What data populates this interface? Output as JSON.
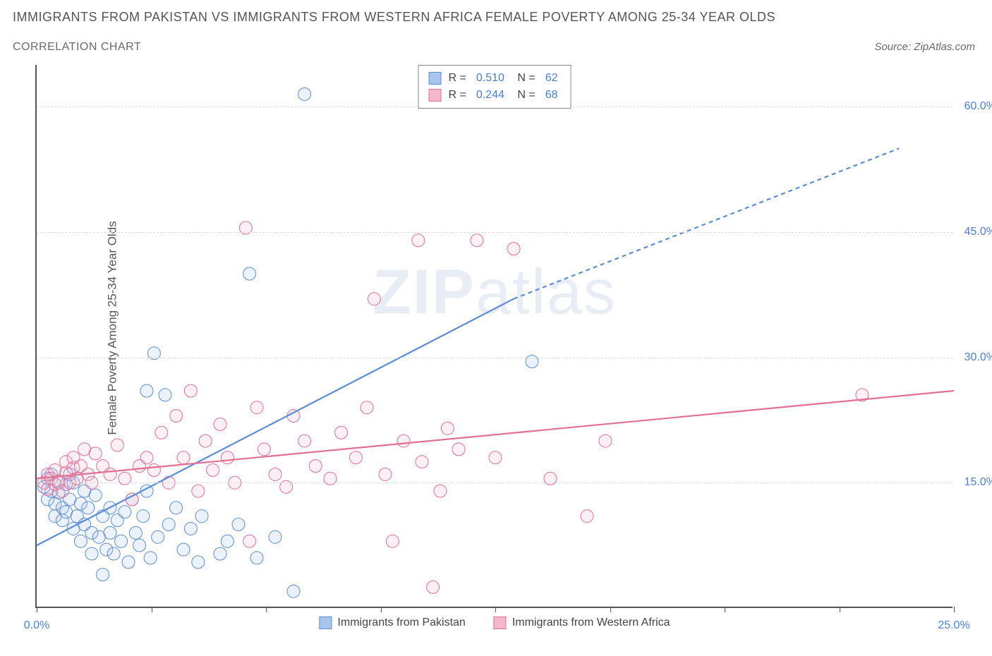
{
  "title": "IMMIGRANTS FROM PAKISTAN VS IMMIGRANTS FROM WESTERN AFRICA FEMALE POVERTY AMONG 25-34 YEAR OLDS",
  "subtitle": "CORRELATION CHART",
  "source": "Source: ZipAtlas.com",
  "ylabel": "Female Poverty Among 25-34 Year Olds",
  "watermark_bold": "ZIP",
  "watermark_rest": "atlas",
  "chart": {
    "type": "scatter",
    "xlim": [
      0,
      25
    ],
    "ylim": [
      0,
      65
    ],
    "xticks": [
      0,
      3.125,
      6.25,
      9.375,
      12.5,
      15.625,
      18.75,
      21.875,
      25
    ],
    "xtick_labels": {
      "0": "0.0%",
      "25": "25.0%"
    },
    "ygrids": [
      15,
      30,
      45,
      60
    ],
    "ytick_labels": {
      "15": "15.0%",
      "30": "30.0%",
      "45": "45.0%",
      "60": "60.0%"
    },
    "background_color": "#ffffff",
    "grid_color": "#dcdcdc",
    "axis_color": "#555555",
    "tick_label_color": "#4a7fd8",
    "marker_radius": 9,
    "marker_stroke_width": 1,
    "marker_fill_opacity": 0.22,
    "series": [
      {
        "name": "Immigrants from Pakistan",
        "color": "#5b8dd6",
        "fill": "#a8c5ec",
        "R": "0.510",
        "N": "62",
        "trend": {
          "x1": 0,
          "y1": 7.5,
          "x2": 13,
          "y2": 37,
          "stroke_width": 2.2
        },
        "trend_extrapolate": {
          "x1": 13,
          "y1": 37,
          "x2": 23.5,
          "y2": 55,
          "dash": "6,5"
        },
        "points": [
          [
            0.2,
            14.5
          ],
          [
            0.3,
            15.5
          ],
          [
            0.3,
            13
          ],
          [
            0.4,
            14
          ],
          [
            0.4,
            16
          ],
          [
            0.5,
            11
          ],
          [
            0.5,
            12.5
          ],
          [
            0.6,
            13.8
          ],
          [
            0.6,
            15.2
          ],
          [
            0.7,
            10.5
          ],
          [
            0.7,
            12
          ],
          [
            0.8,
            14.8
          ],
          [
            0.8,
            11.5
          ],
          [
            0.9,
            13
          ],
          [
            0.9,
            16
          ],
          [
            1.0,
            9.5
          ],
          [
            1.0,
            15
          ],
          [
            1.1,
            11
          ],
          [
            1.2,
            12.5
          ],
          [
            1.2,
            8
          ],
          [
            1.3,
            14
          ],
          [
            1.3,
            10
          ],
          [
            1.4,
            12
          ],
          [
            1.5,
            9
          ],
          [
            1.5,
            6.5
          ],
          [
            1.6,
            13.5
          ],
          [
            1.7,
            8.5
          ],
          [
            1.8,
            11
          ],
          [
            1.8,
            4
          ],
          [
            1.9,
            7
          ],
          [
            2.0,
            12
          ],
          [
            2.0,
            9
          ],
          [
            2.1,
            6.5
          ],
          [
            2.2,
            10.5
          ],
          [
            2.3,
            8
          ],
          [
            2.4,
            11.5
          ],
          [
            2.5,
            5.5
          ],
          [
            2.6,
            13
          ],
          [
            2.7,
            9
          ],
          [
            2.8,
            7.5
          ],
          [
            2.9,
            11
          ],
          [
            3.0,
            14
          ],
          [
            3.0,
            26
          ],
          [
            3.1,
            6
          ],
          [
            3.2,
            30.5
          ],
          [
            3.3,
            8.5
          ],
          [
            3.5,
            25.5
          ],
          [
            3.6,
            10
          ],
          [
            3.8,
            12
          ],
          [
            4.0,
            7
          ],
          [
            4.2,
            9.5
          ],
          [
            4.4,
            5.5
          ],
          [
            4.5,
            11
          ],
          [
            5.0,
            6.5
          ],
          [
            5.2,
            8
          ],
          [
            5.5,
            10
          ],
          [
            5.8,
            40
          ],
          [
            6.0,
            6
          ],
          [
            6.5,
            8.5
          ],
          [
            7.0,
            2
          ],
          [
            7.3,
            61.5
          ],
          [
            13.5,
            29.5
          ]
        ]
      },
      {
        "name": "Immigrants from Western Africa",
        "color": "#e36f93",
        "fill": "#f4b8cb",
        "R": "0.244",
        "N": "68",
        "trend": {
          "x1": 0,
          "y1": 15.5,
          "x2": 25,
          "y2": 26,
          "stroke_width": 2.2
        },
        "points": [
          [
            0.2,
            15
          ],
          [
            0.3,
            16
          ],
          [
            0.3,
            14.2
          ],
          [
            0.4,
            15.5
          ],
          [
            0.5,
            14.8
          ],
          [
            0.5,
            16.5
          ],
          [
            0.6,
            15
          ],
          [
            0.7,
            14
          ],
          [
            0.8,
            16.2
          ],
          [
            0.8,
            17.5
          ],
          [
            0.9,
            15
          ],
          [
            1.0,
            16.8
          ],
          [
            1.0,
            18
          ],
          [
            1.1,
            15.5
          ],
          [
            1.2,
            17
          ],
          [
            1.3,
            19
          ],
          [
            1.4,
            16
          ],
          [
            1.5,
            15
          ],
          [
            1.6,
            18.5
          ],
          [
            1.8,
            17
          ],
          [
            2.0,
            16
          ],
          [
            2.2,
            19.5
          ],
          [
            2.4,
            15.5
          ],
          [
            2.6,
            13
          ],
          [
            2.8,
            17
          ],
          [
            3.0,
            18
          ],
          [
            3.2,
            16.5
          ],
          [
            3.4,
            21
          ],
          [
            3.6,
            15
          ],
          [
            3.8,
            23
          ],
          [
            4.0,
            18
          ],
          [
            4.2,
            26
          ],
          [
            4.4,
            14
          ],
          [
            4.6,
            20
          ],
          [
            4.8,
            16.5
          ],
          [
            5.0,
            22
          ],
          [
            5.2,
            18
          ],
          [
            5.4,
            15
          ],
          [
            5.7,
            45.5
          ],
          [
            5.8,
            8
          ],
          [
            6.0,
            24
          ],
          [
            6.2,
            19
          ],
          [
            6.5,
            16
          ],
          [
            6.8,
            14.5
          ],
          [
            7.0,
            23
          ],
          [
            7.3,
            20
          ],
          [
            7.6,
            17
          ],
          [
            8.0,
            15.5
          ],
          [
            8.3,
            21
          ],
          [
            8.7,
            18
          ],
          [
            9.0,
            24
          ],
          [
            9.2,
            37
          ],
          [
            9.5,
            16
          ],
          [
            9.7,
            8
          ],
          [
            10.0,
            20
          ],
          [
            10.4,
            44
          ],
          [
            10.5,
            17.5
          ],
          [
            10.8,
            2.5
          ],
          [
            11.0,
            14
          ],
          [
            11.2,
            21.5
          ],
          [
            11.5,
            19
          ],
          [
            12.0,
            44
          ],
          [
            12.5,
            18
          ],
          [
            13.0,
            43
          ],
          [
            14.0,
            15.5
          ],
          [
            15.0,
            11
          ],
          [
            15.5,
            20
          ],
          [
            22.5,
            25.5
          ]
        ]
      }
    ]
  },
  "legend_top": {
    "r_label": "R =",
    "n_label": "N ="
  },
  "legend_bottom": {
    "items": [
      "Immigrants from Pakistan",
      "Immigrants from Western Africa"
    ]
  }
}
